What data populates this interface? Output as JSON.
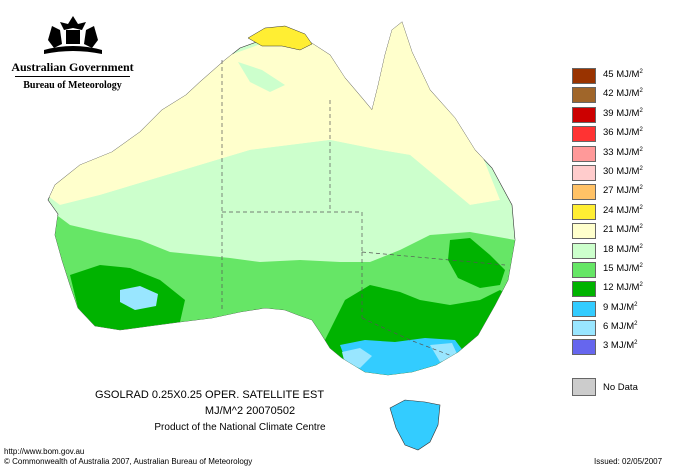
{
  "logo": {
    "line1": "Australian Government",
    "line2": "Bureau of Meteorology"
  },
  "legend": {
    "items": [
      {
        "label": "45 MJ/M",
        "sup": "2",
        "color": "#993300"
      },
      {
        "label": "42 MJ/M",
        "sup": "2",
        "color": "#a0662a"
      },
      {
        "label": "39 MJ/M",
        "sup": "2",
        "color": "#cc0000"
      },
      {
        "label": "36 MJ/M",
        "sup": "2",
        "color": "#ff3333"
      },
      {
        "label": "33 MJ/M",
        "sup": "2",
        "color": "#ff9999"
      },
      {
        "label": "30 MJ/M",
        "sup": "2",
        "color": "#ffcccc"
      },
      {
        "label": "27 MJ/M",
        "sup": "2",
        "color": "#ffc266"
      },
      {
        "label": "24 MJ/M",
        "sup": "2",
        "color": "#ffee33"
      },
      {
        "label": "21 MJ/M",
        "sup": "2",
        "color": "#ffffcc"
      },
      {
        "label": "18 MJ/M",
        "sup": "2",
        "color": "#ccffcc"
      },
      {
        "label": "15 MJ/M",
        "sup": "2",
        "color": "#66e666"
      },
      {
        "label": "12 MJ/M",
        "sup": "2",
        "color": "#00b300"
      },
      {
        "label": "9 MJ/M",
        "sup": "2",
        "color": "#33ccff"
      },
      {
        "label": "6 MJ/M",
        "sup": "2",
        "color": "#99e6ff"
      },
      {
        "label": "3 MJ/M",
        "sup": "2",
        "color": "#6666ee"
      }
    ],
    "nodata_label": "No Data",
    "nodata_color": "#cccccc"
  },
  "caption": {
    "line1": "GSOLRAD     0.25X0.25 OPER. SATELLITE EST",
    "line2": "MJ/M^2  20070502",
    "line3": "Product of the National Climate Centre"
  },
  "footer": {
    "url": "http://www.bom.gov.au",
    "copyright": "© Commonwealth of Australia 2007, Australian Bureau of Meteorology",
    "issued": "Issued: 02/05/2007"
  }
}
